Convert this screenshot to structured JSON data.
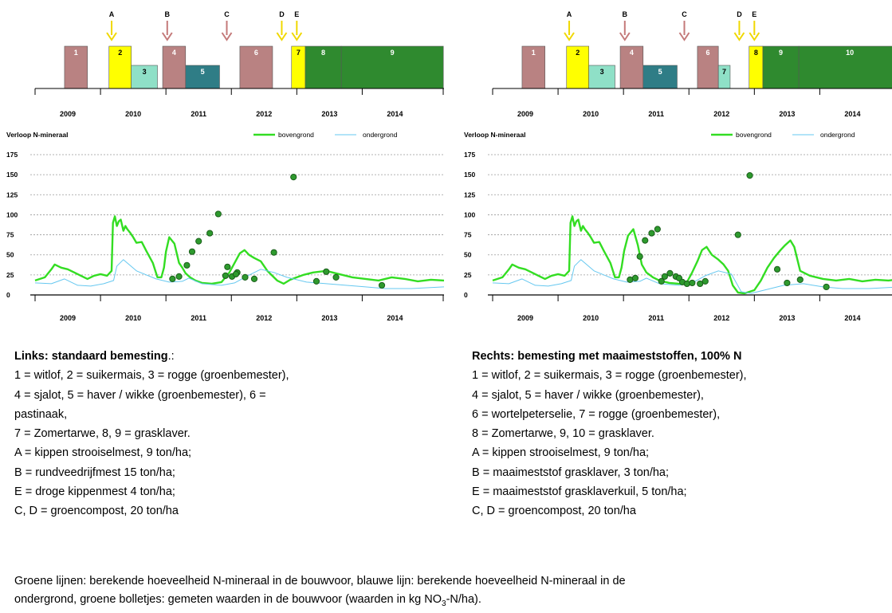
{
  "colors": {
    "crop_rose": "#b98282",
    "crop_yellow": "#ffff00",
    "crop_mint": "#8fe0c7",
    "crop_teal": "#2f7d86",
    "crop_green": "#2f8a2f",
    "arrow_yellow": "#f0d800",
    "arrow_rose": "#c47a7a",
    "line_bovengrond": "#33dd22",
    "line_ondergrond": "#66c8f0",
    "marker_fill": "#2e9a2e",
    "marker_edge": "#1a5e1a",
    "grid": "#999999"
  },
  "chart_data": [
    {
      "type": "line",
      "panel": "left",
      "timeline": {
        "years": [
          "2009",
          "2010",
          "2011",
          "2012",
          "2013",
          "2014"
        ],
        "crops": [
          {
            "label": "1",
            "start": 2009.2,
            "end": 2009.55,
            "color": "crop_rose"
          },
          {
            "label": "2",
            "start": 2009.88,
            "end": 2010.22,
            "color": "crop_yellow"
          },
          {
            "label": "3",
            "start": 2010.22,
            "end": 2010.62,
            "color": "crop_mint"
          },
          {
            "label": "4",
            "start": 2010.7,
            "end": 2011.05,
            "color": "crop_rose"
          },
          {
            "label": "5",
            "start": 2011.05,
            "end": 2011.57,
            "color": "crop_teal"
          },
          {
            "label": "6",
            "start": 2011.88,
            "end": 2012.38,
            "color": "crop_rose"
          },
          {
            "label": "7",
            "start": 2012.67,
            "end": 2012.88,
            "color": "crop_yellow"
          },
          {
            "label": "8",
            "start": 2012.88,
            "end": 2013.43,
            "color": "crop_green"
          },
          {
            "label": "9",
            "start": 2013.43,
            "end": 2014.99,
            "color": "crop_green"
          }
        ],
        "events": [
          {
            "label": "A",
            "x": 2009.92,
            "color": "arrow_yellow"
          },
          {
            "label": "B",
            "x": 2010.77,
            "color": "arrow_rose"
          },
          {
            "label": "C",
            "x": 2011.68,
            "color": "arrow_rose"
          },
          {
            "label": "D",
            "x": 2012.52,
            "color": "arrow_yellow"
          },
          {
            "label": "E",
            "x": 2012.75,
            "color": "arrow_yellow"
          }
        ]
      },
      "title": "Verloop N-mineraal",
      "legend": [
        {
          "name": "bovengrond",
          "color": "line_bovengrond"
        },
        {
          "name": "ondergrond",
          "color": "line_ondergrond"
        }
      ],
      "legend_placement": "top-right",
      "y_ticks": [
        0,
        25,
        50,
        75,
        100,
        125,
        150,
        175
      ],
      "ylim": [
        0,
        175
      ],
      "xlim": [
        2008.75,
        2015.0
      ],
      "x_tick_labels": [
        "2009",
        "2010",
        "2011",
        "2012",
        "2013",
        "2014"
      ],
      "grid": true,
      "series": [
        {
          "name": "bovengrond",
          "x": [
            2008.75,
            2008.9,
            2009.0,
            2009.05,
            2009.15,
            2009.25,
            2009.35,
            2009.45,
            2009.55,
            2009.65,
            2009.75,
            2009.85,
            2009.92,
            2009.94,
            2009.97,
            2010.0,
            2010.03,
            2010.06,
            2010.1,
            2010.13,
            2010.16,
            2010.2,
            2010.25,
            2010.3,
            2010.38,
            2010.45,
            2010.55,
            2010.62,
            2010.68,
            2010.72,
            2010.75,
            2010.8,
            2010.88,
            2010.95,
            2011.0,
            2011.05,
            2011.12,
            2011.2,
            2011.3,
            2011.45,
            2011.6,
            2011.72,
            2011.8,
            2011.88,
            2011.95,
            2012.02,
            2012.1,
            2012.2,
            2012.3,
            2012.4,
            2012.45,
            2012.55,
            2012.65,
            2012.75,
            2012.85,
            2013.0,
            2013.2,
            2013.4,
            2013.6,
            2013.8,
            2014.0,
            2014.2,
            2014.4,
            2014.6,
            2014.8,
            2015.0
          ],
          "y": [
            18,
            22,
            32,
            38,
            34,
            32,
            28,
            24,
            20,
            24,
            26,
            24,
            30,
            90,
            98,
            86,
            92,
            94,
            80,
            86,
            82,
            78,
            72,
            65,
            66,
            55,
            40,
            22,
            22,
            34,
            54,
            72,
            64,
            40,
            34,
            27,
            22,
            18,
            15,
            14,
            16,
            28,
            40,
            52,
            56,
            50,
            46,
            42,
            30,
            22,
            18,
            14,
            19,
            22,
            25,
            28,
            30,
            26,
            22,
            20,
            18,
            22,
            20,
            17,
            19,
            18
          ]
        },
        {
          "name": "ondergrond",
          "x": [
            2008.75,
            2009.0,
            2009.2,
            2009.4,
            2009.6,
            2009.8,
            2009.95,
            2010.0,
            2010.1,
            2010.3,
            2010.6,
            2010.8,
            2011.0,
            2011.1,
            2011.3,
            2011.6,
            2011.8,
            2012.0,
            2012.2,
            2012.4,
            2012.6,
            2012.9,
            2013.2,
            2013.5,
            2013.8,
            2014.1,
            2014.5,
            2015.0
          ],
          "y": [
            15,
            14,
            20,
            12,
            11,
            14,
            18,
            36,
            44,
            30,
            20,
            16,
            17,
            21,
            14,
            12,
            15,
            24,
            32,
            28,
            22,
            16,
            14,
            12,
            10,
            8,
            8,
            10
          ]
        },
        {
          "name": "gemeten",
          "type": "scatter",
          "x": [
            2010.85,
            2010.95,
            2011.07,
            2011.15,
            2011.25,
            2011.42,
            2011.55,
            2011.69,
            2011.76,
            2011.84,
            2011.82,
            2011.66,
            2011.96,
            2012.1,
            2012.4,
            2012.7,
            2013.05,
            2013.2,
            2013.35,
            2014.05
          ],
          "y": [
            20,
            23,
            37,
            54,
            67,
            77,
            101,
            35,
            23,
            28,
            26,
            24,
            22,
            20,
            53,
            147,
            17,
            29,
            22,
            12
          ]
        }
      ]
    },
    {
      "type": "line",
      "panel": "right",
      "timeline": {
        "years": [
          "2009",
          "2010",
          "2011",
          "2012",
          "2013",
          "2014"
        ],
        "crops": [
          {
            "label": "1",
            "start": 2009.2,
            "end": 2009.55,
            "color": "crop_rose"
          },
          {
            "label": "2",
            "start": 2009.88,
            "end": 2010.22,
            "color": "crop_yellow"
          },
          {
            "label": "3",
            "start": 2010.22,
            "end": 2010.62,
            "color": "crop_mint"
          },
          {
            "label": "4",
            "start": 2010.7,
            "end": 2011.05,
            "color": "crop_rose"
          },
          {
            "label": "5",
            "start": 2011.05,
            "end": 2011.57,
            "color": "crop_teal"
          },
          {
            "label": "6",
            "start": 2011.88,
            "end": 2012.2,
            "color": "crop_rose"
          },
          {
            "label": "7",
            "start": 2012.2,
            "end": 2012.38,
            "color": "crop_mint"
          },
          {
            "label": "8",
            "start": 2012.67,
            "end": 2012.88,
            "color": "crop_yellow"
          },
          {
            "label": "9",
            "start": 2012.88,
            "end": 2013.43,
            "color": "crop_green"
          },
          {
            "label": "10",
            "start": 2013.43,
            "end": 2014.99,
            "color": "crop_green"
          }
        ],
        "events": [
          {
            "label": "A",
            "x": 2009.92,
            "color": "arrow_yellow"
          },
          {
            "label": "B",
            "x": 2010.77,
            "color": "arrow_rose"
          },
          {
            "label": "C",
            "x": 2011.68,
            "color": "arrow_rose"
          },
          {
            "label": "D",
            "x": 2012.52,
            "color": "arrow_yellow"
          },
          {
            "label": "E",
            "x": 2012.75,
            "color": "arrow_yellow"
          }
        ]
      },
      "title": "Verloop N-mineraal",
      "legend": [
        {
          "name": "bovengrond",
          "color": "line_bovengrond"
        },
        {
          "name": "ondergrond",
          "color": "line_ondergrond"
        }
      ],
      "legend_placement": "top-right",
      "y_ticks": [
        0,
        25,
        50,
        75,
        100,
        125,
        150,
        175
      ],
      "ylim": [
        0,
        175
      ],
      "xlim": [
        2008.75,
        2015.0
      ],
      "x_tick_labels": [
        "2009",
        "2010",
        "2011",
        "2012",
        "2013",
        "2014"
      ],
      "grid": true,
      "series": [
        {
          "name": "bovengrond",
          "x": [
            2008.75,
            2008.9,
            2009.0,
            2009.05,
            2009.15,
            2009.25,
            2009.35,
            2009.45,
            2009.55,
            2009.65,
            2009.75,
            2009.85,
            2009.92,
            2009.94,
            2009.97,
            2010.0,
            2010.03,
            2010.06,
            2010.1,
            2010.13,
            2010.16,
            2010.2,
            2010.25,
            2010.3,
            2010.38,
            2010.45,
            2010.55,
            2010.62,
            2010.68,
            2010.72,
            2010.76,
            2010.82,
            2010.9,
            2010.97,
            2011.03,
            2011.1,
            2011.2,
            2011.3,
            2011.45,
            2011.6,
            2011.72,
            2011.8,
            2011.88,
            2011.95,
            2012.02,
            2012.1,
            2012.2,
            2012.28,
            2012.35,
            2012.42,
            2012.5,
            2012.6,
            2012.75,
            2012.85,
            2012.95,
            2013.05,
            2013.15,
            2013.22,
            2013.3,
            2013.36,
            2013.45,
            2013.6,
            2013.8,
            2014.0,
            2014.2,
            2014.4,
            2014.6,
            2014.8,
            2015.0
          ],
          "y": [
            18,
            22,
            32,
            38,
            34,
            32,
            28,
            24,
            20,
            24,
            26,
            24,
            30,
            90,
            98,
            86,
            92,
            94,
            80,
            86,
            82,
            78,
            72,
            65,
            66,
            55,
            40,
            22,
            22,
            34,
            55,
            74,
            82,
            62,
            38,
            28,
            22,
            18,
            15,
            14,
            16,
            28,
            42,
            56,
            60,
            50,
            44,
            38,
            30,
            12,
            3,
            2,
            6,
            18,
            34,
            46,
            56,
            62,
            68,
            60,
            30,
            24,
            20,
            18,
            20,
            17,
            19,
            18,
            20
          ]
        },
        {
          "name": "ondergrond",
          "x": [
            2008.75,
            2009.0,
            2009.2,
            2009.4,
            2009.6,
            2009.8,
            2009.95,
            2010.0,
            2010.1,
            2010.3,
            2010.6,
            2010.8,
            2011.0,
            2011.1,
            2011.3,
            2011.6,
            2011.8,
            2012.0,
            2012.2,
            2012.4,
            2012.55,
            2012.7,
            2012.9,
            2013.2,
            2013.5,
            2013.8,
            2014.1,
            2014.5,
            2015.0
          ],
          "y": [
            15,
            14,
            20,
            12,
            11,
            14,
            18,
            36,
            44,
            30,
            20,
            16,
            17,
            21,
            14,
            12,
            15,
            24,
            30,
            26,
            4,
            2,
            6,
            12,
            14,
            10,
            8,
            8,
            10
          ]
        },
        {
          "name": "gemeten",
          "type": "scatter",
          "x": [
            2010.85,
            2010.93,
            2011.0,
            2011.08,
            2011.18,
            2011.27,
            2011.33,
            2011.38,
            2011.46,
            2011.55,
            2011.6,
            2011.65,
            2011.72,
            2011.8,
            2011.92,
            2012.0,
            2012.5,
            2012.68,
            2013.1,
            2013.25,
            2013.45,
            2013.85
          ],
          "y": [
            19,
            21,
            48,
            68,
            77,
            82,
            17,
            23,
            27,
            23,
            21,
            16,
            14,
            15,
            14,
            17,
            75,
            149,
            32,
            15,
            19,
            10
          ]
        }
      ]
    }
  ],
  "captions": {
    "left": {
      "title": "Links: standaard bemesting",
      "title_suffix": ".:",
      "lines": [
        "1 = witlof, 2 = suikermais, 3 = rogge (groenbemester),",
        "4 = sjalot, 5 = haver / wikke (groenbemester), 6 =",
        "pastinaak,",
        "7 = Zomertarwe, 8, 9 = grasklaver.",
        "A = kippen strooiselmest, 9 ton/ha;",
        "B = rundveedrijfmest 15 ton/ha;",
        "E = droge kippenmest 4 ton/ha;",
        "C, D = groencompost, 20 ton/ha"
      ]
    },
    "right": {
      "title": "Rechts: bemesting met maaimeststoffen, 100% N",
      "lines": [
        "1 = witlof, 2 = suikermais, 3 = rogge (groenbemester),",
        "4 = sjalot, 5 = haver / wikke (groenbemester),",
        "6 = wortelpeterselie, 7 = rogge (groenbemester),",
        "8 = Zomertarwe, 9, 10 = grasklaver.",
        "A = kippen strooiselmest, 9 ton/ha;",
        "B = maaimeststof grasklaver, 3 ton/ha;",
        "E = maaimeststof grasklaverkuil, 5 ton/ha;",
        "C, D = groencompost, 20 ton/ha"
      ]
    }
  },
  "footer": {
    "line1": "Groene lijnen: berekende hoeveelheid N-mineraal in de bouwvoor, blauwe lijn: berekende hoeveelheid N-mineraal in de",
    "line2_a": "ondergrond, groene bolletjes: gemeten waarden in de bouwvoor (waarden in kg NO",
    "line2_sub": "3",
    "line2_b": "-N/ha)."
  }
}
